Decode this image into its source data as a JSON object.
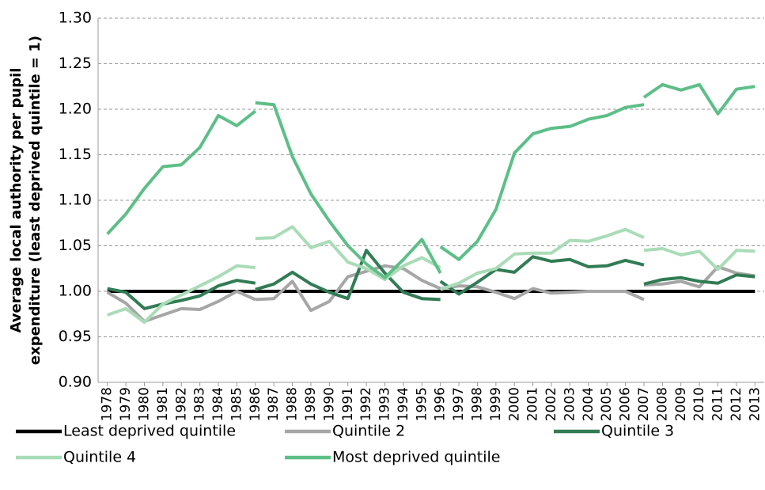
{
  "chart_data": {
    "type": "line",
    "y_label": [
      "Average local authority per pupil",
      "expenditure (least deprived quintile = 1)"
    ],
    "x": [
      1978,
      1979,
      1980,
      1981,
      1982,
      1983,
      1984,
      1985,
      1986,
      1986,
      1986,
      1987,
      1988,
      1989,
      1990,
      1991,
      1992,
      1993,
      1994,
      1995,
      1996,
      1996,
      1996,
      1997,
      1998,
      1999,
      2000,
      2001,
      2002,
      2003,
      2004,
      2005,
      2006,
      2007,
      2007,
      2007,
      2008,
      2009,
      2010,
      2011,
      2012,
      2013
    ],
    "xticks": [
      1978,
      1979,
      1980,
      1981,
      1982,
      1983,
      1984,
      1985,
      1986,
      1987,
      1988,
      1989,
      1990,
      1991,
      1992,
      1993,
      1994,
      1995,
      1996,
      1997,
      1998,
      1999,
      2000,
      2001,
      2002,
      2003,
      2004,
      2005,
      2006,
      2007,
      2008,
      2009,
      2010,
      2011,
      2012,
      2013
    ],
    "xlim": [
      1977.5,
      2013.5
    ],
    "ylim": [
      0.9,
      1.3
    ],
    "yticks": [
      {
        "value": 0.9,
        "label": "0.90"
      },
      0.95,
      {
        "value": 1.0,
        "label": "1.00"
      },
      1.05,
      {
        "value": 1.1,
        "label": "1.10"
      },
      1.15,
      {
        "value": 1.2,
        "label": "1.20"
      },
      1.25,
      {
        "value": 1.3,
        "label": "1.30"
      }
    ],
    "grid": true,
    "series": [
      {
        "name": "Least deprived quintile",
        "color": "#000000",
        "values": [
          1,
          1,
          1,
          1,
          1,
          1,
          1,
          1,
          1,
          null,
          1,
          1,
          1,
          1,
          1,
          1,
          1,
          1,
          1,
          1,
          1,
          null,
          1,
          1,
          1,
          1,
          1,
          1,
          1,
          1,
          1,
          1,
          1,
          1,
          null,
          1,
          1,
          1,
          1,
          1,
          1,
          1
        ]
      },
      {
        "name": "Quintile 2",
        "color": "#a6a6a6",
        "values": [
          0.999,
          0.987,
          0.967,
          0.974,
          0.981,
          0.98,
          0.989,
          1.0,
          0.991,
          null,
          0.991,
          0.992,
          1.011,
          0.979,
          0.989,
          1.016,
          1.022,
          1.028,
          1.025,
          1.012,
          1.003,
          null,
          1.003,
          1.006,
          1.005,
          0.999,
          0.992,
          1.003,
          0.998,
          0.999,
          1.0,
          1.0,
          1.0,
          0.991,
          null,
          1.007,
          1.008,
          1.011,
          1.005,
          1.027,
          1.02,
          1.017
        ]
      },
      {
        "name": "Quintile 3",
        "color": "#327c55",
        "values": [
          1.003,
          0.999,
          0.981,
          0.986,
          0.99,
          0.995,
          1.006,
          1.012,
          1.009,
          null,
          1.002,
          1.008,
          1.021,
          1.008,
          0.999,
          0.992,
          1.045,
          1.02,
          0.999,
          0.992,
          0.991,
          null,
          1.011,
          0.997,
          1.01,
          1.024,
          1.021,
          1.038,
          1.033,
          1.035,
          1.027,
          1.028,
          1.034,
          1.029,
          null,
          1.008,
          1.013,
          1.015,
          1.011,
          1.009,
          1.018,
          1.016
        ]
      },
      {
        "name": "Quintile 4",
        "color": "#a9dcb7",
        "values": [
          0.974,
          0.981,
          0.966,
          0.986,
          0.996,
          1.006,
          1.016,
          1.028,
          1.026,
          null,
          1.058,
          1.059,
          1.071,
          1.048,
          1.055,
          1.032,
          1.025,
          1.013,
          1.028,
          1.037,
          1.026,
          null,
          1.002,
          1.009,
          1.02,
          1.025,
          1.041,
          1.042,
          1.042,
          1.056,
          1.055,
          1.061,
          1.068,
          1.059,
          null,
          1.045,
          1.047,
          1.04,
          1.044,
          1.024,
          1.045,
          1.044
        ]
      },
      {
        "name": "Most deprived quintile",
        "color": "#5dbf87",
        "values": [
          1.063,
          1.085,
          1.113,
          1.137,
          1.139,
          1.158,
          1.193,
          1.182,
          1.198,
          null,
          1.207,
          1.205,
          1.148,
          1.107,
          1.077,
          1.05,
          1.03,
          1.015,
          1.035,
          1.057,
          1.02,
          null,
          1.049,
          1.035,
          1.055,
          1.09,
          1.152,
          1.173,
          1.179,
          1.181,
          1.189,
          1.193,
          1.202,
          1.205,
          null,
          1.213,
          1.227,
          1.221,
          1.227,
          1.195,
          1.222,
          1.225
        ]
      }
    ]
  }
}
